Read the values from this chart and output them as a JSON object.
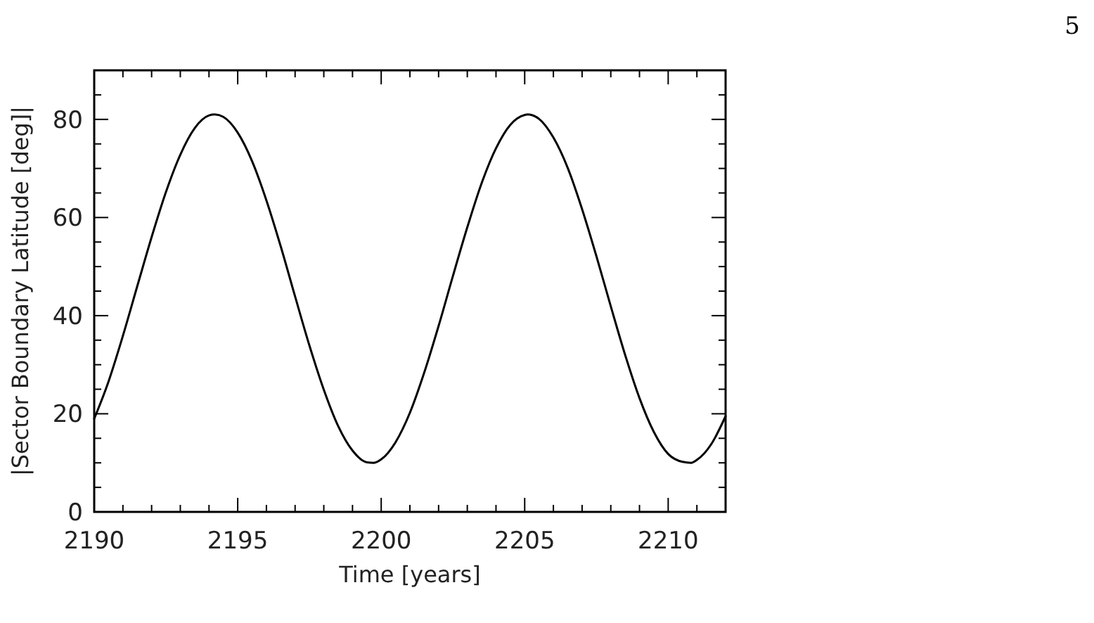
{
  "chart_data": {
    "type": "line",
    "xlabel": "Time [years]",
    "ylabel": "|Sector Boundary Latitude [deg]|",
    "annotations": [
      "5"
    ],
    "xlim": [
      2190,
      2212
    ],
    "ylim": [
      0,
      90
    ],
    "xticks": [
      2190,
      {
        "value": 2191,
        "label": null
      },
      {
        "value": 2192,
        "label": null
      },
      {
        "value": 2193,
        "label": null
      },
      {
        "value": 2194,
        "label": null
      },
      2195,
      {
        "value": 2196,
        "label": null
      },
      {
        "value": 2197,
        "label": null
      },
      {
        "value": 2198,
        "label": null
      },
      {
        "value": 2199,
        "label": null
      },
      2200,
      {
        "value": 2201,
        "label": null
      },
      {
        "value": 2202,
        "label": null
      },
      {
        "value": 2203,
        "label": null
      },
      {
        "value": 2204,
        "label": null
      },
      2205,
      {
        "value": 2206,
        "label": null
      },
      {
        "value": 2207,
        "label": null
      },
      {
        "value": 2208,
        "label": null
      },
      {
        "value": 2209,
        "label": null
      },
      2210,
      {
        "value": 2211,
        "label": null
      },
      {
        "value": 2212,
        "label": null
      }
    ],
    "yticks": [
      0,
      {
        "value": 5,
        "label": null
      },
      {
        "value": 10,
        "label": null
      },
      {
        "value": 15,
        "label": null
      },
      20,
      {
        "value": 25,
        "label": null
      },
      {
        "value": 30,
        "label": null
      },
      {
        "value": 35,
        "label": null
      },
      40,
      {
        "value": 45,
        "label": null
      },
      {
        "value": 50,
        "label": null
      },
      {
        "value": 55,
        "label": null
      },
      60,
      {
        "value": 65,
        "label": null
      },
      {
        "value": 70,
        "label": null
      },
      {
        "value": 75,
        "label": null
      },
      80,
      {
        "value": 85,
        "label": null
      },
      {
        "value": 90,
        "label": null
      }
    ],
    "grid": false,
    "marker": "none",
    "line_style": "solid",
    "series": [
      {
        "color": "#000000",
        "x": [
          2190,
          2190.5,
          2191,
          2191.5,
          2192,
          2192.5,
          2193,
          2193.5,
          2194,
          2194.2,
          2194.5,
          2195,
          2195.5,
          2196,
          2196.5,
          2197,
          2197.5,
          2198,
          2198.5,
          2199,
          2199.5,
          2199.75,
          2200,
          2200.5,
          2201,
          2201.5,
          2202,
          2202.5,
          2203,
          2203.5,
          2204,
          2204.5,
          2205,
          2205.1,
          2205.5,
          2206,
          2206.5,
          2207,
          2207.5,
          2208,
          2208.5,
          2209,
          2209.5,
          2210,
          2210.5,
          2210.8,
          2211,
          2211.5,
          2212
        ],
        "values": [
          19,
          26.6,
          35.9,
          46,
          56,
          65.2,
          72.8,
          78.2,
          80.8,
          81,
          80.5,
          77.3,
          71.5,
          63.5,
          54.1,
          43.9,
          33.9,
          24.9,
          17.5,
          12.5,
          10.1,
          10,
          10.7,
          14.2,
          20.2,
          28.4,
          37.9,
          48.1,
          58,
          67,
          74.1,
          78.9,
          80.9,
          81,
          80.1,
          76.3,
          70.1,
          61.7,
          52.1,
          41.9,
          32,
          23.2,
          16.3,
          11.8,
          10.2,
          10,
          10.6,
          13.8,
          19.5
        ]
      }
    ]
  }
}
